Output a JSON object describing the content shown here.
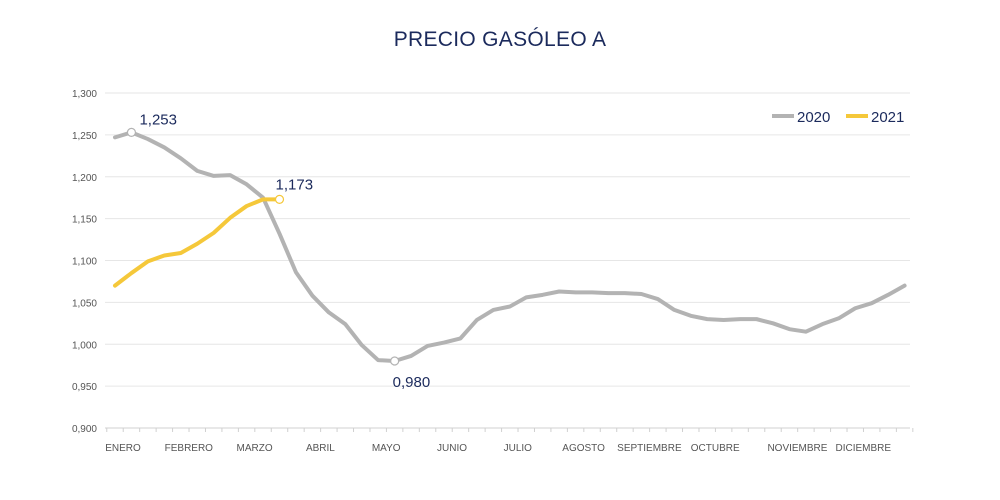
{
  "chart_data": {
    "type": "line",
    "title": "PRECIO GASÓLEO A",
    "xlabel": "",
    "ylabel": "",
    "ylim": [
      0.9,
      1.3
    ],
    "yticks": [
      "0,900",
      "0,950",
      "1,000",
      "1,050",
      "1,100",
      "1,150",
      "1,200",
      "1,250",
      "1,300"
    ],
    "ytick_values": [
      0.9,
      0.95,
      1.0,
      1.05,
      1.1,
      1.15,
      1.2,
      1.25,
      1.3
    ],
    "grid": true,
    "legend": "top-right",
    "month_labels": [
      {
        "label": "ENERO",
        "week": 0
      },
      {
        "label": "FEBRERO",
        "week": 4
      },
      {
        "label": "MARZO",
        "week": 8
      },
      {
        "label": "ABRIL",
        "week": 12
      },
      {
        "label": "MAYO",
        "week": 16
      },
      {
        "label": "JUNIO",
        "week": 20
      },
      {
        "label": "JULIO",
        "week": 24
      },
      {
        "label": "AGOSTO",
        "week": 28
      },
      {
        "label": "SEPTIEMBRE",
        "week": 32
      },
      {
        "label": "OCTUBRE",
        "week": 36
      },
      {
        "label": "NOVIEMBRE",
        "week": 41
      },
      {
        "label": "DICIEMBRE",
        "week": 45
      }
    ],
    "n_weeks": 49,
    "series": [
      {
        "name": "2020",
        "color": "#b3b3b3",
        "values": [
          1.247,
          1.253,
          1.245,
          1.235,
          1.222,
          1.207,
          1.201,
          1.202,
          1.191,
          1.175,
          1.132,
          1.086,
          1.058,
          1.038,
          1.024,
          0.999,
          0.981,
          0.98,
          0.986,
          0.998,
          1.002,
          1.007,
          1.029,
          1.041,
          1.045,
          1.056,
          1.059,
          1.063,
          1.062,
          1.062,
          1.061,
          1.061,
          1.06,
          1.054,
          1.041,
          1.034,
          1.03,
          1.029,
          1.03,
          1.03,
          1.025,
          1.018,
          1.015,
          1.024,
          1.031,
          1.043,
          1.049,
          1.059,
          1.07
        ]
      },
      {
        "name": "2021",
        "color": "#f5c83a",
        "values": [
          1.07,
          1.085,
          1.099,
          1.106,
          1.109,
          1.12,
          1.133,
          1.151,
          1.165,
          1.173,
          1.173
        ]
      }
    ],
    "annotations": [
      {
        "series": "2020",
        "week": 1,
        "text": "1,253",
        "placement": "above-right"
      },
      {
        "series": "2021",
        "week": 10,
        "text": "1,173",
        "placement": "above"
      },
      {
        "series": "2020",
        "week": 17,
        "text": "0,980",
        "placement": "below"
      }
    ]
  }
}
